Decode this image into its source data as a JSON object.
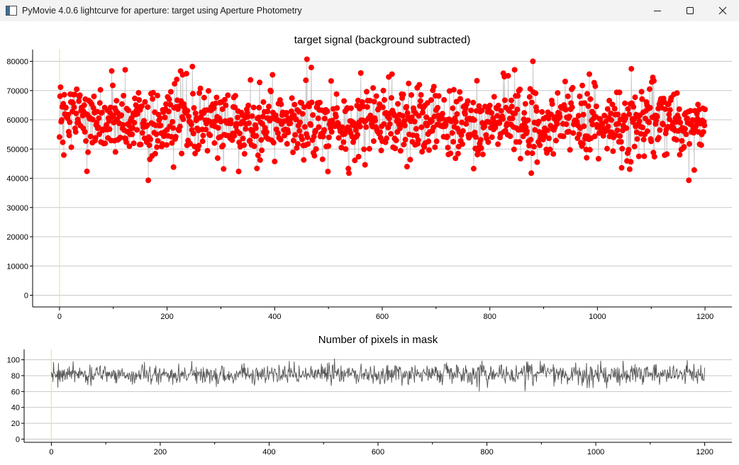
{
  "window": {
    "title": "PyMovie 4.0.6 lightcurve for aperture: target using Aperture Photometry",
    "icon": "pymovie-app-icon",
    "controls": [
      "minimize-icon",
      "maximize-icon",
      "close-icon"
    ]
  },
  "colors": {
    "signal_point": "#ff0000",
    "signal_connector": "#c8c8c8",
    "pixel_line": "#555555",
    "grid": "#c8c8c8",
    "cursor_line": "#e6e6a0",
    "axis": "#000000"
  },
  "chart_data": [
    {
      "type": "scatter",
      "title": "target signal (background subtracted)",
      "xlabel": "",
      "ylabel": "",
      "xlim": [
        -50,
        1250
      ],
      "ylim": [
        -4000,
        84000
      ],
      "x_ticks": [
        0,
        200,
        400,
        600,
        800,
        1000,
        1200
      ],
      "x_tick_labels": [
        "0",
        "200",
        "400",
        "600",
        "800",
        "1000",
        "1200"
      ],
      "y_ticks": [
        0,
        10000,
        20000,
        30000,
        40000,
        50000,
        60000,
        70000,
        80000
      ],
      "y_tick_labels": [
        "0",
        "10000",
        "20000",
        "30000",
        "40000",
        "50000",
        "60000",
        "70000",
        "80000"
      ],
      "grid": "horizontal",
      "legend": "none",
      "cursor_x": 0,
      "series": [
        {
          "x_range": [
            0,
            1200
          ],
          "mean": 59000,
          "std": 5700,
          "min": 39300,
          "max": 80700,
          "notable_points": [
            [
              97,
              76700
            ],
            [
              122,
              77100
            ],
            [
              247,
              78200
            ],
            [
              396,
              75400
            ],
            [
              460,
              80700
            ],
            [
              468,
              77900
            ],
            [
              560,
              76000
            ],
            [
              618,
              75600
            ],
            [
              880,
              80000
            ],
            [
              985,
              75600
            ],
            [
              1105,
              73300
            ],
            [
              1170,
              39300
            ],
            [
              1180,
              42800
            ],
            [
              305,
              43200
            ],
            [
              537,
              43300
            ],
            [
              770,
              43300
            ],
            [
              1060,
              43100
            ]
          ]
        }
      ]
    },
    {
      "type": "line",
      "title": "Number of pixels in mask",
      "xlabel": "",
      "ylabel": "",
      "xlim": [
        -50,
        1250
      ],
      "ylim": [
        -4,
        113
      ],
      "x_ticks": [
        0,
        200,
        400,
        600,
        800,
        1000,
        1200
      ],
      "x_tick_labels": [
        "0",
        "200",
        "400",
        "600",
        "800",
        "1000",
        "1200"
      ],
      "y_ticks": [
        0,
        20,
        40,
        60,
        80,
        100
      ],
      "y_tick_labels": [
        "0",
        "20",
        "40",
        "60",
        "80",
        "100"
      ],
      "grid": "horizontal",
      "legend": "none",
      "cursor_x": 0,
      "series": [
        {
          "x_range": [
            0,
            1200
          ],
          "mean": 82,
          "std": 6.5,
          "min": 60,
          "max": 104
        }
      ]
    }
  ]
}
